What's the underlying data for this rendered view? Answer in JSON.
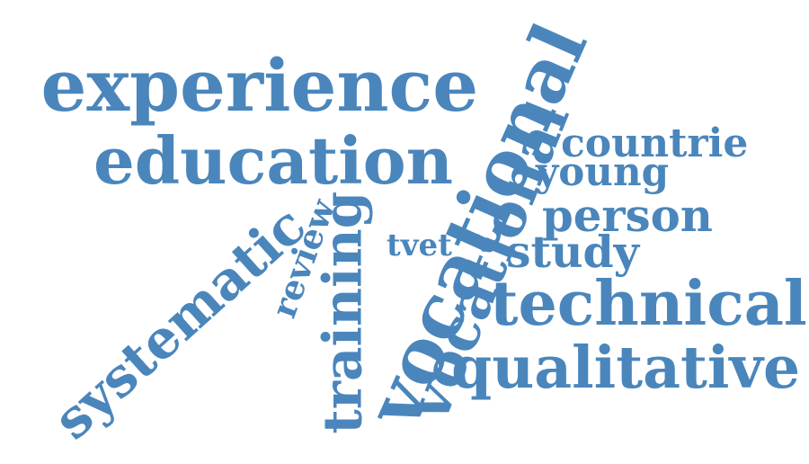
{
  "word_cloud": {
    "color": "#4a86bc",
    "words": [
      {
        "id": "experience",
        "text": "experience"
      },
      {
        "id": "education",
        "text": "education"
      },
      {
        "id": "vocational-large",
        "text": "vocational"
      },
      {
        "id": "vocational-medium",
        "text": "vocational"
      },
      {
        "id": "countrie",
        "text": "countrie"
      },
      {
        "id": "young",
        "text": "young"
      },
      {
        "id": "person",
        "text": "person"
      },
      {
        "id": "study",
        "text": "study"
      },
      {
        "id": "tvet",
        "text": "tvet"
      },
      {
        "id": "technical",
        "text": "technical"
      },
      {
        "id": "qualitative",
        "text": "qualitative"
      },
      {
        "id": "systematic",
        "text": "systematic"
      },
      {
        "id": "review",
        "text": "review"
      },
      {
        "id": "training",
        "text": "training"
      }
    ]
  }
}
